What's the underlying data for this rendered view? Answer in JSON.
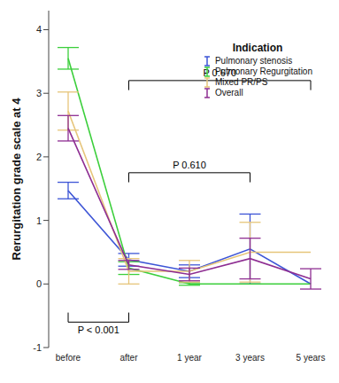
{
  "chart_data": {
    "type": "line",
    "y_label": "Rerurgitation grade scale at 4",
    "legend_title": "Indication",
    "legend": "top-right",
    "categories": [
      "before",
      "after",
      "1 year",
      "3 years",
      "5 years"
    ],
    "ylim": [
      -1,
      4.3
    ],
    "yticks": [
      -1,
      0,
      1,
      2,
      3,
      4
    ],
    "grid": false,
    "series": [
      {
        "name": "Pulmonary stenosis",
        "color": "#3d55d6",
        "values": [
          1.47,
          0.38,
          0.2,
          0.55,
          0.0
        ],
        "errors": [
          0.13,
          0.1,
          0.1,
          0.55,
          0.0
        ]
      },
      {
        "name": "Pulmonary Regurgitation",
        "color": "#3ccf3c",
        "values": [
          3.55,
          0.25,
          0.0,
          0.0,
          0.0
        ],
        "errors": [
          0.17,
          0.1,
          0.02,
          0.0,
          0.0
        ]
      },
      {
        "name": "Mixed PR/PS",
        "color": "#e6c57a",
        "values": [
          2.72,
          0.2,
          0.2,
          0.5,
          0.5
        ],
        "errors": [
          0.3,
          0.2,
          0.17,
          0.47,
          0.0
        ]
      },
      {
        "name": "Overall",
        "color": "#8e2e92",
        "values": [
          2.45,
          0.3,
          0.15,
          0.4,
          0.08
        ],
        "errors": [
          0.2,
          0.07,
          0.1,
          0.32,
          0.16
        ]
      }
    ],
    "annotations": [
      {
        "text": "P 0.670",
        "from": "after",
        "to": "5 years"
      },
      {
        "text": "P 0.610",
        "from": "after",
        "to": "3 years"
      },
      {
        "text": "P < 0.001",
        "from": "before",
        "to": "after"
      }
    ]
  }
}
